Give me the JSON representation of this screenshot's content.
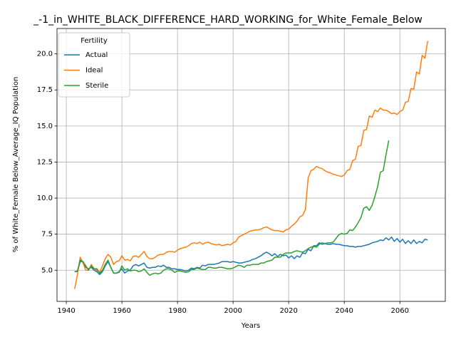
{
  "chart_data": {
    "type": "line",
    "title": "_-1_in_WHITE_BLACK_DIFFERENCE_HARD_WORKING_for_White_Female_Below",
    "xlabel": "Years",
    "ylabel": "% of White_Female Below_Average_IQ Population",
    "legend_title": "Fertility",
    "legend": "upper left",
    "grid": true,
    "x": [
      1943,
      1944,
      1945,
      1946,
      1947,
      1948,
      1949,
      1950,
      1951,
      1952,
      1953,
      1954,
      1955,
      1956,
      1957,
      1958,
      1959,
      1960,
      1961,
      1962,
      1963,
      1964,
      1965,
      1966,
      1967,
      1968,
      1969,
      1970,
      1971,
      1972,
      1973,
      1974,
      1975,
      1976,
      1977,
      1978,
      1979,
      1980,
      1981,
      1982,
      1983,
      1984,
      1985,
      1986,
      1987,
      1988,
      1989,
      1990,
      1991,
      1992,
      1993,
      1994,
      1995,
      1996,
      1997,
      1998,
      1999,
      2000,
      2001,
      2002,
      2003,
      2004,
      2005,
      2006,
      2007,
      2008,
      2009,
      2010,
      2011,
      2012,
      2013,
      2014,
      2015,
      2016,
      2017,
      2018,
      2019,
      2020,
      2021,
      2022,
      2023,
      2024,
      2025,
      2026,
      2027,
      2028,
      2029,
      2030,
      2031,
      2032,
      2033,
      2034,
      2035,
      2036,
      2037,
      2038,
      2039,
      2040,
      2041,
      2042,
      2043,
      2044,
      2045,
      2046,
      2047,
      2048,
      2049,
      2050,
      2051,
      2052,
      2053,
      2054,
      2055,
      2056,
      2057,
      2058,
      2059,
      2060,
      2061,
      2062,
      2063,
      2064,
      2065,
      2066,
      2067,
      2068,
      2069,
      2070
    ],
    "series": [
      {
        "name": "Actual",
        "color": "#1f77b4",
        "values": [
          4.9,
          4.9,
          5.6,
          5.6,
          5.2,
          5.1,
          5.2,
          5.0,
          4.9,
          4.7,
          4.9,
          5.3,
          5.6,
          5.2,
          4.8,
          4.8,
          4.9,
          5.1,
          4.8,
          4.95,
          5.0,
          5.3,
          5.4,
          5.3,
          5.4,
          5.5,
          5.2,
          5.15,
          5.2,
          5.2,
          5.3,
          5.25,
          5.35,
          5.2,
          5.2,
          5.1,
          5.1,
          5.05,
          5.05,
          5.0,
          4.95,
          5.0,
          5.15,
          5.1,
          5.2,
          5.15,
          5.35,
          5.3,
          5.4,
          5.4,
          5.4,
          5.45,
          5.5,
          5.6,
          5.6,
          5.6,
          5.55,
          5.6,
          5.55,
          5.5,
          5.5,
          5.55,
          5.6,
          5.65,
          5.75,
          5.8,
          5.9,
          6.0,
          6.15,
          6.25,
          6.15,
          6.0,
          6.15,
          5.95,
          6.1,
          6.0,
          6.05,
          5.85,
          6.0,
          5.8,
          6.0,
          5.9,
          6.2,
          6.15,
          6.45,
          6.35,
          6.7,
          6.7,
          6.9,
          6.8,
          6.85,
          6.8,
          6.8,
          6.85,
          6.8,
          6.8,
          6.75,
          6.7,
          6.7,
          6.65,
          6.65,
          6.6,
          6.65,
          6.65,
          6.7,
          6.75,
          6.8,
          6.9,
          6.95,
          7.0,
          7.1,
          7.05,
          7.25,
          7.1,
          7.3,
          7.0,
          7.2,
          6.95,
          7.15,
          6.85,
          7.05,
          6.85,
          7.1,
          6.85,
          7.0,
          6.9,
          7.15,
          7.1
        ]
      },
      {
        "name": "Ideal",
        "color": "#ff7f0e",
        "values": [
          3.7,
          4.7,
          5.9,
          5.5,
          5.0,
          5.0,
          5.4,
          5.1,
          5.0,
          4.85,
          5.3,
          5.8,
          6.1,
          5.9,
          5.4,
          5.6,
          5.65,
          6.0,
          5.7,
          5.75,
          5.65,
          5.95,
          6.0,
          5.9,
          6.1,
          6.3,
          5.95,
          5.8,
          5.8,
          5.9,
          6.05,
          6.1,
          6.1,
          6.25,
          6.3,
          6.3,
          6.25,
          6.4,
          6.5,
          6.55,
          6.6,
          6.7,
          6.85,
          6.9,
          6.85,
          6.95,
          6.8,
          6.9,
          6.95,
          6.85,
          6.8,
          6.75,
          6.8,
          6.7,
          6.75,
          6.8,
          6.75,
          6.9,
          7.0,
          7.3,
          7.4,
          7.5,
          7.6,
          7.7,
          7.75,
          7.8,
          7.8,
          7.85,
          7.95,
          8.0,
          7.9,
          7.8,
          7.75,
          7.75,
          7.7,
          7.65,
          7.8,
          7.85,
          8.05,
          8.2,
          8.4,
          8.7,
          8.8,
          9.2,
          11.4,
          11.9,
          12.0,
          12.2,
          12.1,
          12.05,
          11.9,
          11.8,
          11.75,
          11.65,
          11.6,
          11.55,
          11.5,
          11.6,
          11.9,
          12.0,
          12.6,
          12.7,
          13.6,
          13.65,
          14.7,
          14.75,
          15.7,
          15.6,
          16.1,
          16.0,
          16.25,
          16.1,
          16.1,
          16.0,
          15.85,
          15.9,
          15.8,
          16.0,
          16.1,
          16.65,
          16.7,
          17.6,
          17.55,
          18.75,
          18.6,
          19.9,
          19.7,
          20.9
        ]
      },
      {
        "name": "Sterile",
        "color": "#2ca02c",
        "values": [
          4.9,
          4.95,
          5.7,
          5.6,
          5.3,
          5.0,
          5.3,
          5.1,
          5.1,
          4.8,
          5.0,
          5.4,
          5.7,
          5.2,
          4.8,
          4.8,
          4.85,
          5.3,
          5.0,
          5.1,
          4.95,
          5.0,
          5.0,
          4.9,
          4.95,
          5.1,
          4.85,
          4.65,
          4.75,
          4.8,
          4.75,
          4.8,
          5.0,
          5.1,
          5.1,
          5.0,
          4.85,
          4.95,
          4.95,
          4.9,
          4.85,
          4.9,
          5.05,
          5.05,
          5.15,
          5.1,
          5.05,
          5.05,
          5.2,
          5.2,
          5.15,
          5.15,
          5.2,
          5.2,
          5.15,
          5.1,
          5.1,
          5.15,
          5.25,
          5.35,
          5.3,
          5.2,
          5.35,
          5.35,
          5.4,
          5.4,
          5.4,
          5.5,
          5.5,
          5.6,
          5.65,
          5.7,
          5.9,
          5.9,
          5.9,
          6.1,
          6.2,
          6.2,
          6.2,
          6.3,
          6.35,
          6.3,
          6.25,
          6.35,
          6.5,
          6.6,
          6.65,
          6.6,
          6.8,
          6.9,
          6.85,
          6.9,
          6.9,
          6.95,
          7.2,
          7.45,
          7.55,
          7.5,
          7.55,
          7.8,
          7.75,
          8.0,
          8.3,
          8.65,
          9.3,
          9.4,
          9.15,
          9.5,
          10.1,
          10.8,
          11.8,
          11.9,
          13.0,
          14.0,
          null,
          null,
          null,
          null,
          null,
          null,
          null,
          null,
          null,
          null,
          null,
          null,
          null,
          null
        ]
      }
    ],
    "xlim": [
      1936.65,
      2076.35
    ],
    "ylim": [
      2.84,
      21.76
    ],
    "xticks": [
      1940,
      1960,
      1980,
      2000,
      2020,
      2040,
      2060
    ],
    "yticks": [
      {
        "value": 5.0,
        "label": "5.0"
      },
      7.5,
      {
        "value": 10.0,
        "label": "10.0"
      },
      12.5,
      {
        "value": 15.0,
        "label": "15.0"
      },
      17.5,
      {
        "value": 20.0,
        "label": "20.0"
      }
    ]
  }
}
